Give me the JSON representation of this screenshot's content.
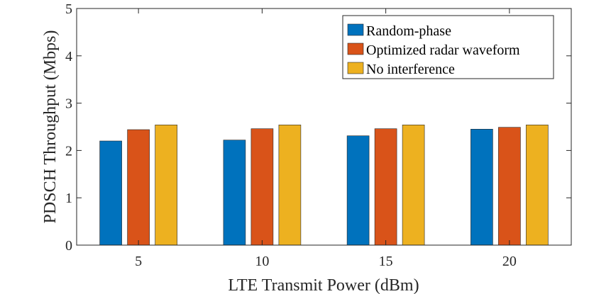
{
  "chart_data": {
    "type": "bar",
    "title": "",
    "xlabel": "LTE Transmit Power (dBm)",
    "ylabel": "PDSCH Throughput (Mbps)",
    "categories": [
      "5",
      "10",
      "15",
      "20"
    ],
    "ylim": [
      0,
      5
    ],
    "yticks": [
      "0",
      "1",
      "2",
      "3",
      "4",
      "5"
    ],
    "grid": false,
    "legend_position": "top-right",
    "series": [
      {
        "name": "Random-phase",
        "color": "#0072BD",
        "values": [
          2.2,
          2.22,
          2.31,
          2.45
        ]
      },
      {
        "name": "Optimized radar waveform",
        "color": "#D95319",
        "values": [
          2.44,
          2.46,
          2.46,
          2.49
        ]
      },
      {
        "name": "No interference",
        "color": "#EDB120",
        "values": [
          2.54,
          2.54,
          2.54,
          2.54
        ]
      }
    ]
  }
}
